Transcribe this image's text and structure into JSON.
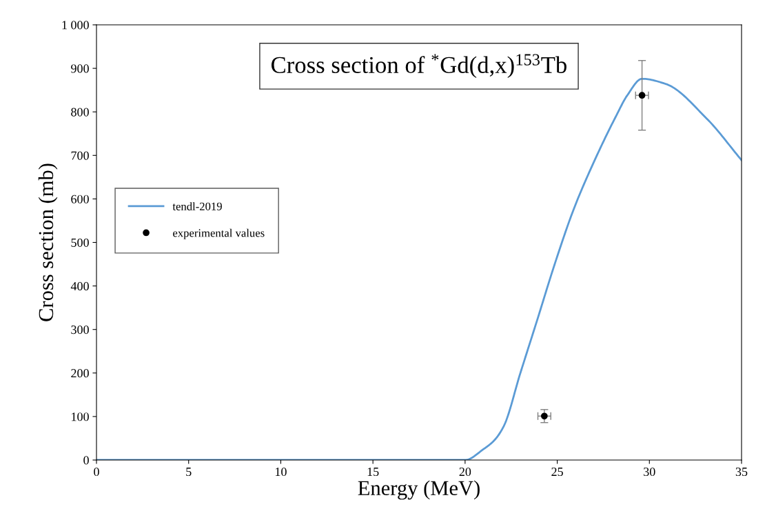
{
  "chart_data": {
    "type": "line",
    "title": "Cross section of $^{*}$Gd(d,x)$^{153}$Tb",
    "xlabel": "Energy (MeV)",
    "ylabel": "Cross section (mb)",
    "series": [
      {
        "name": "tendl-2019",
        "color": "#5b9bd5",
        "x": [
          0,
          5,
          10,
          15,
          19.5,
          20.0,
          21.0,
          21.6,
          22.1,
          23.0,
          23.9,
          24.9,
          25.9,
          27.0,
          28.2,
          28.8,
          29.6,
          30.9,
          33.1,
          35
        ],
        "values": [
          0,
          0,
          0,
          0,
          0,
          0,
          25,
          46,
          78,
          200,
          320,
          455,
          577,
          686,
          791,
          838,
          876,
          864,
          785,
          689
        ]
      },
      {
        "name": "experimental values",
        "type": "scatter",
        "color": "#000000",
        "marker": "circle",
        "x": [
          24.3,
          29.6
        ],
        "values": [
          101,
          838
        ],
        "errors": [
          15,
          80
        ],
        "xerrors": [
          0.35,
          0.35
        ]
      }
    ],
    "xlim": [
      0,
      35
    ],
    "xticks": [
      0,
      5,
      10,
      15,
      20,
      25,
      30,
      35
    ],
    "ylim": [
      0,
      1000
    ],
    "yticks": [
      0,
      100,
      200,
      300,
      400,
      500,
      600,
      700,
      800,
      900,
      {
        "value": 1000,
        "label": "1 000"
      }
    ],
    "grid": false,
    "legend": "left"
  }
}
